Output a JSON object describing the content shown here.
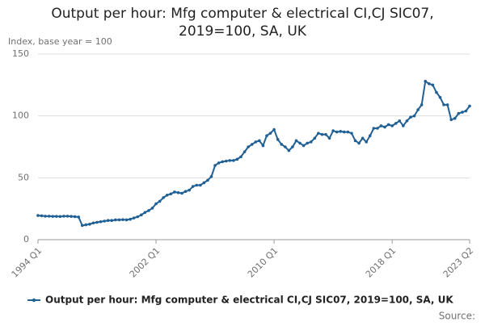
{
  "chart_data": {
    "type": "line",
    "title": "Output per hour: Mfg computer & electrical CI,CJ SIC07, 2019=100, SA, UK",
    "y_label": "Index, base year = 100",
    "source": "Source:",
    "categories": [
      "1994 Q1",
      null,
      null,
      null,
      null,
      null,
      null,
      null,
      null,
      null,
      null,
      null,
      null,
      null,
      null,
      null,
      null,
      null,
      null,
      null,
      null,
      null,
      null,
      null,
      null,
      null,
      null,
      null,
      null,
      null,
      null,
      null,
      "2002 Q1",
      null,
      null,
      null,
      null,
      null,
      null,
      null,
      null,
      null,
      null,
      null,
      null,
      null,
      null,
      null,
      null,
      null,
      null,
      null,
      null,
      null,
      null,
      null,
      null,
      null,
      null,
      null,
      null,
      null,
      null,
      null,
      "2010 Q1",
      null,
      null,
      null,
      null,
      null,
      null,
      null,
      null,
      null,
      null,
      null,
      null,
      null,
      null,
      null,
      null,
      null,
      null,
      null,
      null,
      null,
      null,
      null,
      null,
      null,
      null,
      null,
      null,
      null,
      null,
      null,
      "2018 Q1",
      null,
      null,
      null,
      null,
      null,
      null,
      null,
      null,
      null,
      null,
      null,
      null,
      null,
      null,
      null,
      null,
      null,
      null,
      null,
      null,
      "2023 Q2"
    ],
    "series": [
      {
        "name": "Output per hour: Mfg computer & electrical CI,CJ SIC07, 2019=100, SA, UK",
        "color": "#206095",
        "values": [
          19.5,
          19.3,
          19,
          19,
          18.8,
          18.8,
          18.7,
          19,
          19,
          18.8,
          18.6,
          18.3,
          11.5,
          12,
          12.5,
          13.5,
          14,
          14.5,
          15,
          15.5,
          15.5,
          16,
          16,
          16.2,
          16,
          16.5,
          17.5,
          18.5,
          20,
          22,
          23.5,
          25.5,
          29,
          31,
          34,
          36,
          37,
          38.5,
          38,
          37.5,
          39,
          40,
          43,
          44,
          44,
          46,
          48,
          51,
          60,
          62,
          63,
          63.5,
          64,
          64,
          65,
          67,
          71,
          75,
          77,
          79,
          80,
          76,
          84,
          86,
          89,
          81,
          77,
          75,
          72,
          75,
          80,
          78,
          76,
          78,
          79,
          82,
          86,
          85,
          85,
          82,
          88,
          87,
          87.5,
          87,
          87,
          86,
          80,
          78,
          82,
          79,
          84,
          90,
          90,
          92,
          91,
          93,
          92,
          94,
          96,
          92,
          96,
          99,
          100,
          105,
          109,
          128,
          126,
          125,
          119,
          115,
          109,
          109,
          97,
          98,
          102,
          103,
          104,
          108
        ]
      }
    ],
    "ylim": [
      0,
      150
    ],
    "yticks": [
      0,
      50,
      100,
      150
    ],
    "grid": true
  }
}
